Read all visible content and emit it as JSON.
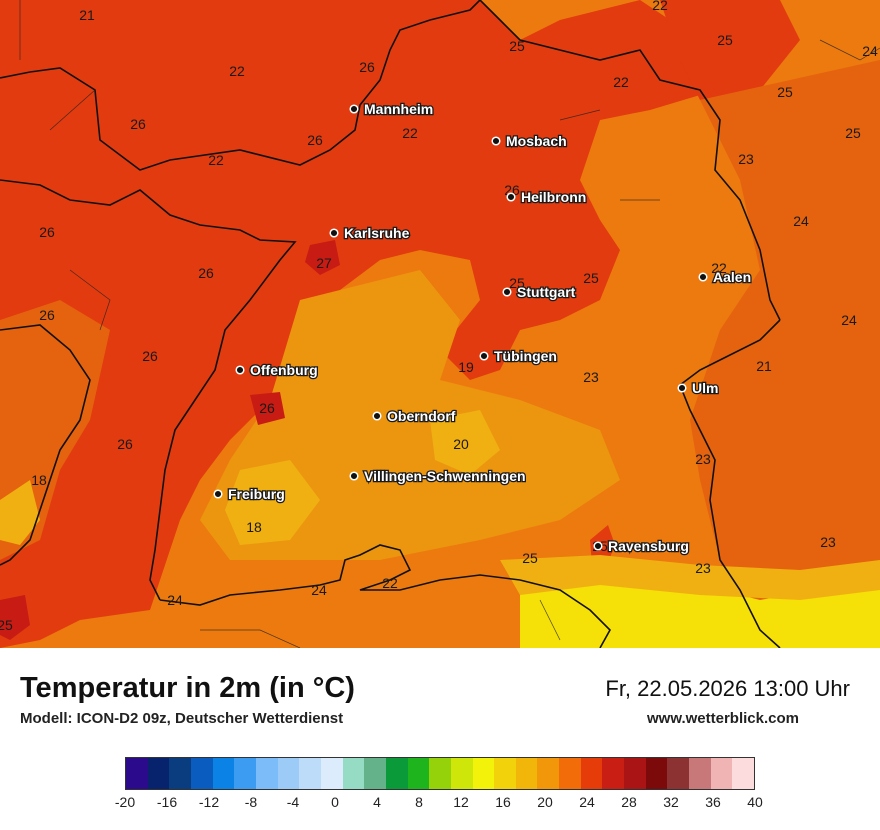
{
  "map": {
    "colors": {
      "t18": "#f0b012",
      "t19": "#ec9610",
      "t20": "#ec7a0e",
      "t22": "#e5630e",
      "t24": "#e23b0f",
      "t26": "#d73b12",
      "t28": "#c81b14",
      "t30": "#f5e007",
      "border": "#111111"
    },
    "cities": [
      {
        "name": "Mannheim"
      },
      {
        "name": "Mosbach"
      },
      {
        "name": "Heilbronn"
      },
      {
        "name": "Karlsruhe"
      },
      {
        "name": "Stuttgart"
      },
      {
        "name": "Aalen"
      },
      {
        "name": "Tübingen"
      },
      {
        "name": "Offenburg"
      },
      {
        "name": "Ulm"
      },
      {
        "name": "Oberndorf"
      },
      {
        "name": "Villingen-Schwenningen"
      },
      {
        "name": "Freiburg"
      },
      {
        "name": "Ravensburg"
      }
    ],
    "values": [
      "21",
      "22",
      "26",
      "26",
      "22",
      "26",
      "22",
      "26",
      "26",
      "27",
      "26",
      "26",
      "26",
      "26",
      "18",
      "18",
      "24",
      "24",
      "22",
      "25",
      "22",
      "25",
      "25",
      "25",
      "24",
      "23",
      "24",
      "22",
      "24",
      "21",
      "23",
      "23",
      "20",
      "19",
      "25",
      "25",
      "25",
      "23",
      "23",
      "22",
      "25",
      "26",
      "25"
    ]
  },
  "header": {
    "title": "Temperatur in 2m (in °C)",
    "model": "Modell: ICON-D2 09z, Deutscher Wetterdienst",
    "datetime": "Fr, 22.05.2026 13:00 Uhr",
    "site": "www.wetterblick.com"
  },
  "legend": {
    "colors": [
      "#2c0a8c",
      "#07236e",
      "#0a3d80",
      "#0a5dbe",
      "#0a82e6",
      "#3c9cf2",
      "#7cbcf8",
      "#9ccbf8",
      "#bcdcfa",
      "#dcecfc",
      "#96dcc4",
      "#64b28a",
      "#0a9a3a",
      "#1eb41e",
      "#96d20a",
      "#cfe60a",
      "#f2f20a",
      "#f2d20a",
      "#f2b60a",
      "#f2960a",
      "#f26c0a",
      "#e63c0a",
      "#c81e14",
      "#aa1414",
      "#7d0a0a",
      "#8c3232",
      "#c87878",
      "#f0b4b4",
      "#fcdcdc"
    ],
    "ticks": [
      "-20",
      "-16",
      "-12",
      "-8",
      "-4",
      "0",
      "4",
      "8",
      "12",
      "16",
      "20",
      "24",
      "28",
      "32",
      "36",
      "40"
    ]
  }
}
